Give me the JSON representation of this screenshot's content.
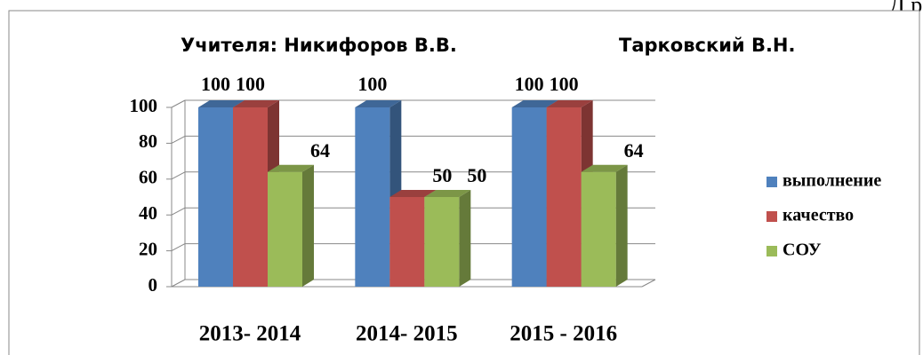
{
  "chart_data": {
    "type": "bar3d",
    "title": "Учителя:  Никифоров В.В.",
    "subtitle": "Тарковский В.Н.",
    "annotation": "Д р",
    "categories": [
      "2013- 2014",
      "2014- 2015",
      "2015 - 2016"
    ],
    "series": [
      {
        "name": "выполнение",
        "color": "#4f81bd",
        "values": [
          100,
          100,
          100
        ]
      },
      {
        "name": "качество",
        "color": "#c0504d",
        "values": [
          100,
          50,
          100
        ]
      },
      {
        "name": "СОУ",
        "color": "#9bbb59",
        "values": [
          64,
          50,
          64
        ]
      }
    ],
    "ylim": [
      0,
      100
    ],
    "yticks": [
      0,
      20,
      40,
      60,
      80,
      100
    ],
    "grid": true,
    "legend": "right"
  }
}
